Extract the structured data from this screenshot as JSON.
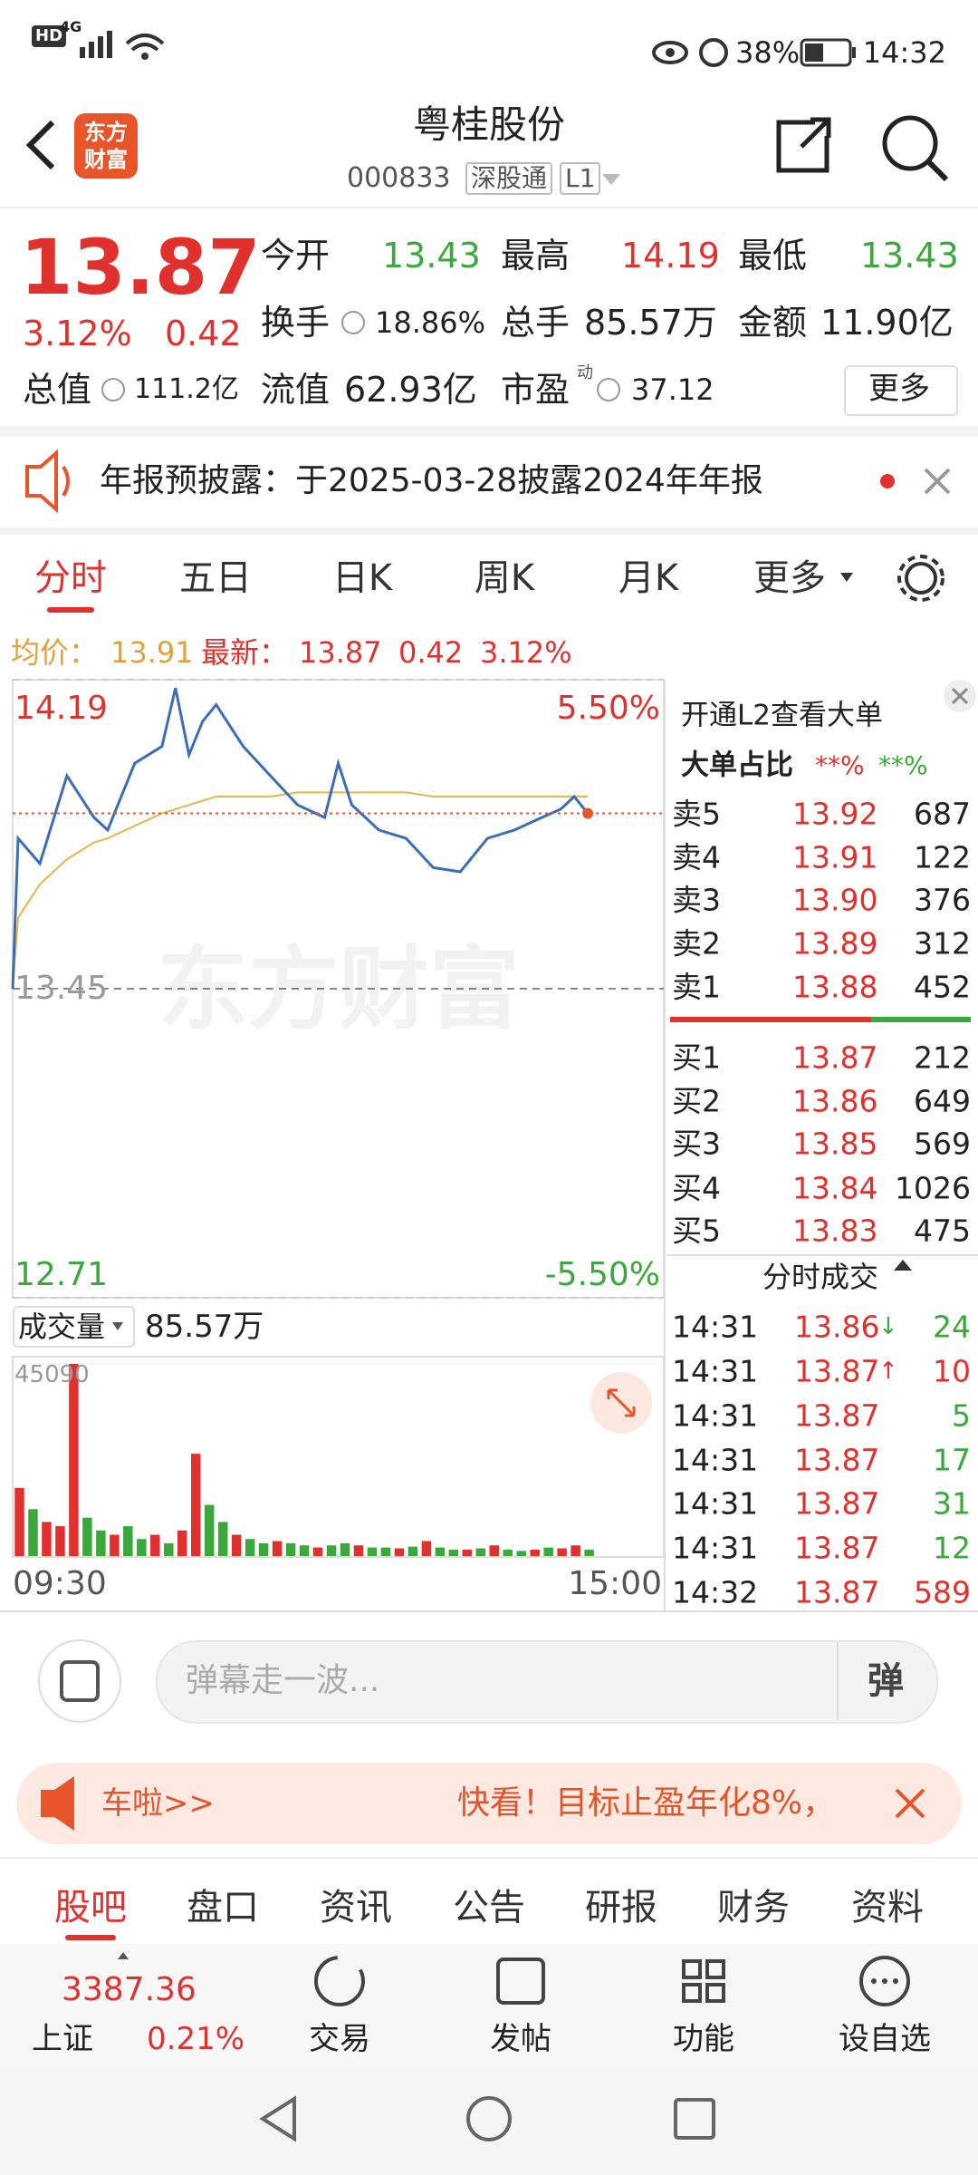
{
  "status_bar": {
    "hd": "HD",
    "network": "4G",
    "battery": "38%",
    "time": "14:32"
  },
  "header": {
    "logo_top": "东方",
    "logo_bottom": "财富",
    "title": "粤桂股份",
    "code": "000833",
    "market": "深股通",
    "level": "L1"
  },
  "quote": {
    "price": "13.87",
    "change_pct": "3.12%",
    "change": "0.42",
    "open_label": "今开",
    "open": "13.43",
    "high_label": "最高",
    "high": "14.19",
    "low_label": "最低",
    "low": "13.43",
    "turnover_label": "换手",
    "turnover": "18.86%",
    "volume_label": "总手",
    "volume": "85.57万",
    "amount_label": "金额",
    "amount": "11.90亿",
    "mcap_label": "总值",
    "mcap": "111.2亿",
    "float_label": "流值",
    "float": "62.93亿",
    "pe_label": "市盈",
    "pe_sup": "动",
    "pe": "37.12",
    "more": "更多"
  },
  "notice": "年报预披露：于2025-03-28披露2024年年报",
  "tabs": [
    "分时",
    "五日",
    "日K",
    "周K",
    "月K",
    "更多"
  ],
  "chart_info": {
    "avg_label": "均价：",
    "avg": "13.91",
    "last_label": "最新：",
    "last": "13.87",
    "change": "0.42",
    "pct": "3.12%"
  },
  "watermark": "东方财富",
  "chart_data": [
    {
      "type": "line",
      "x": [
        "09:30",
        "09:32",
        "09:40",
        "09:50",
        "10:00",
        "10:05",
        "10:15",
        "10:25",
        "10:30",
        "10:35",
        "10:40",
        "10:45",
        "10:55",
        "11:05",
        "11:15",
        "11:25",
        "13:00",
        "13:05",
        "13:15",
        "13:25",
        "13:35",
        "13:45",
        "13:55",
        "14:05",
        "14:15",
        "14:22",
        "14:27",
        "14:32"
      ],
      "xlim": [
        "09:30",
        "15:00"
      ],
      "ylim": [
        12.71,
        14.19
      ],
      "yticks": [
        12.71,
        13.45,
        14.19
      ],
      "y2lim": [
        -5.5,
        5.5
      ],
      "y2ticks": [
        {
          "value": -5.5,
          "label": "-5.50%"
        },
        {
          "value": 5.5,
          "label": "5.50%"
        }
      ],
      "series": [
        {
          "color": "#e8b54a",
          "values": [
            13.45,
            13.62,
            13.7,
            13.76,
            13.8,
            13.81,
            13.84,
            13.87,
            13.88,
            13.89,
            13.9,
            13.91,
            13.91,
            13.91,
            13.92,
            13.92,
            13.92,
            13.92,
            13.92,
            13.92,
            13.91,
            13.91,
            13.91,
            13.91,
            13.91,
            13.91,
            13.91,
            13.91
          ]
        },
        {
          "color": "#3d6db5",
          "values": [
            13.45,
            13.81,
            13.75,
            13.96,
            13.86,
            13.83,
            13.99,
            14.03,
            14.17,
            14.01,
            14.09,
            14.13,
            14.03,
            13.96,
            13.89,
            13.86,
            13.99,
            13.89,
            13.83,
            13.81,
            13.74,
            13.73,
            13.81,
            13.83,
            13.86,
            13.88,
            13.91,
            13.87
          ]
        }
      ]
    },
    {
      "type": "bar",
      "title": "成交量",
      "subtitle": "85.57万",
      "x": [
        "09:30",
        "09:35",
        "09:40",
        "09:45",
        "09:50",
        "09:55",
        "10:00",
        "10:05",
        "10:10",
        "10:15",
        "10:20",
        "10:25",
        "10:30",
        "10:35",
        "10:40",
        "10:45",
        "10:50",
        "10:55",
        "11:00",
        "11:05",
        "11:10",
        "11:15",
        "11:20",
        "11:25",
        "13:00",
        "13:05",
        "13:10",
        "13:15",
        "13:20",
        "13:25",
        "13:30",
        "13:35",
        "13:40",
        "13:45",
        "13:50",
        "13:55",
        "14:00",
        "14:05",
        "14:10",
        "14:15",
        "14:20",
        "14:25",
        "14:30"
      ],
      "xlim": [
        "09:30",
        "15:00"
      ],
      "ylim": [
        0,
        45090
      ],
      "yticks": [
        45090
      ],
      "values": [
        16000,
        11000,
        8000,
        7000,
        45090,
        9000,
        6000,
        5000,
        7000,
        4000,
        5000,
        3000,
        6000,
        24000,
        12000,
        8000,
        5000,
        4000,
        3000,
        3500,
        3000,
        2500,
        2000,
        2500,
        3000,
        2500,
        2000,
        2000,
        1800,
        2200,
        3500,
        2000,
        1500,
        1500,
        1800,
        2500,
        1500,
        1200,
        1500,
        2000,
        1800,
        2500,
        1500
      ],
      "colors": [
        "#e0312e",
        "#3aa83a",
        "#e0312e",
        "#e0312e",
        "#e0312e",
        "#3aa83a",
        "#3aa83a",
        "#e0312e",
        "#3aa83a",
        "#3aa83a",
        "#e0312e",
        "#3aa83a",
        "#e0312e",
        "#e0312e",
        "#3aa83a",
        "#3aa83a",
        "#e0312e",
        "#3aa83a",
        "#3aa83a",
        "#e0312e",
        "#3aa83a",
        "#3aa83a",
        "#e0312e",
        "#3aa83a",
        "#3aa83a",
        "#e0312e",
        "#3aa83a",
        "#3aa83a",
        "#e0312e",
        "#3aa83a",
        "#e0312e",
        "#3aa83a",
        "#3aa83a",
        "#e0312e",
        "#3aa83a",
        "#e0312e",
        "#3aa83a",
        "#3aa83a",
        "#e0312e",
        "#3aa83a",
        "#e0312e",
        "#e0312e",
        "#3aa83a"
      ]
    }
  ],
  "order_book": {
    "link": "开通L2查看大单",
    "ratio_label": "大单占比",
    "ratio_red": "**%",
    "ratio_green": "**%",
    "asks": [
      [
        "卖5",
        "13.92",
        "687"
      ],
      [
        "卖4",
        "13.91",
        "122"
      ],
      [
        "卖3",
        "13.90",
        "376"
      ],
      [
        "卖2",
        "13.89",
        "312"
      ],
      [
        "卖1",
        "13.88",
        "452"
      ]
    ],
    "bids": [
      [
        "买1",
        "13.87",
        "212"
      ],
      [
        "买2",
        "13.86",
        "649"
      ],
      [
        "买3",
        "13.85",
        "569"
      ],
      [
        "买4",
        "13.84",
        "1026"
      ],
      [
        "买5",
        "13.83",
        "475"
      ]
    ]
  },
  "trades": {
    "title": "分时成交",
    "rows": [
      {
        "time": "14:31",
        "price": "13.86",
        "arrow": "↓",
        "volume": "24",
        "color": "#3aa83a"
      },
      {
        "time": "14:31",
        "price": "13.87",
        "arrow": "↑",
        "volume": "10",
        "color": "#e0312e"
      },
      {
        "time": "14:31",
        "price": "13.87",
        "volume": "5",
        "color": "#3aa83a"
      },
      {
        "time": "14:31",
        "price": "13.87",
        "volume": "17",
        "color": "#3aa83a"
      },
      {
        "time": "14:31",
        "price": "13.87",
        "volume": "31",
        "color": "#3aa83a"
      },
      {
        "time": "14:31",
        "price": "13.87",
        "volume": "12",
        "color": "#3aa83a"
      },
      {
        "time": "14:32",
        "price": "13.87",
        "volume": "589",
        "color": "#e0312e"
      }
    ]
  },
  "comment": {
    "placeholder": "弹幕走一波...",
    "button": "弹"
  },
  "ad": {
    "left": "车啦>>",
    "right": "快看！目标止盈年化8%，"
  },
  "bottom_tabs": [
    "股吧",
    "盘口",
    "资讯",
    "公告",
    "研报",
    "财务",
    "资料"
  ],
  "index": {
    "value": "3387.36",
    "name": "上证",
    "change": "0.21%"
  },
  "nav": [
    "交易",
    "发帖",
    "功能",
    "设自选"
  ]
}
